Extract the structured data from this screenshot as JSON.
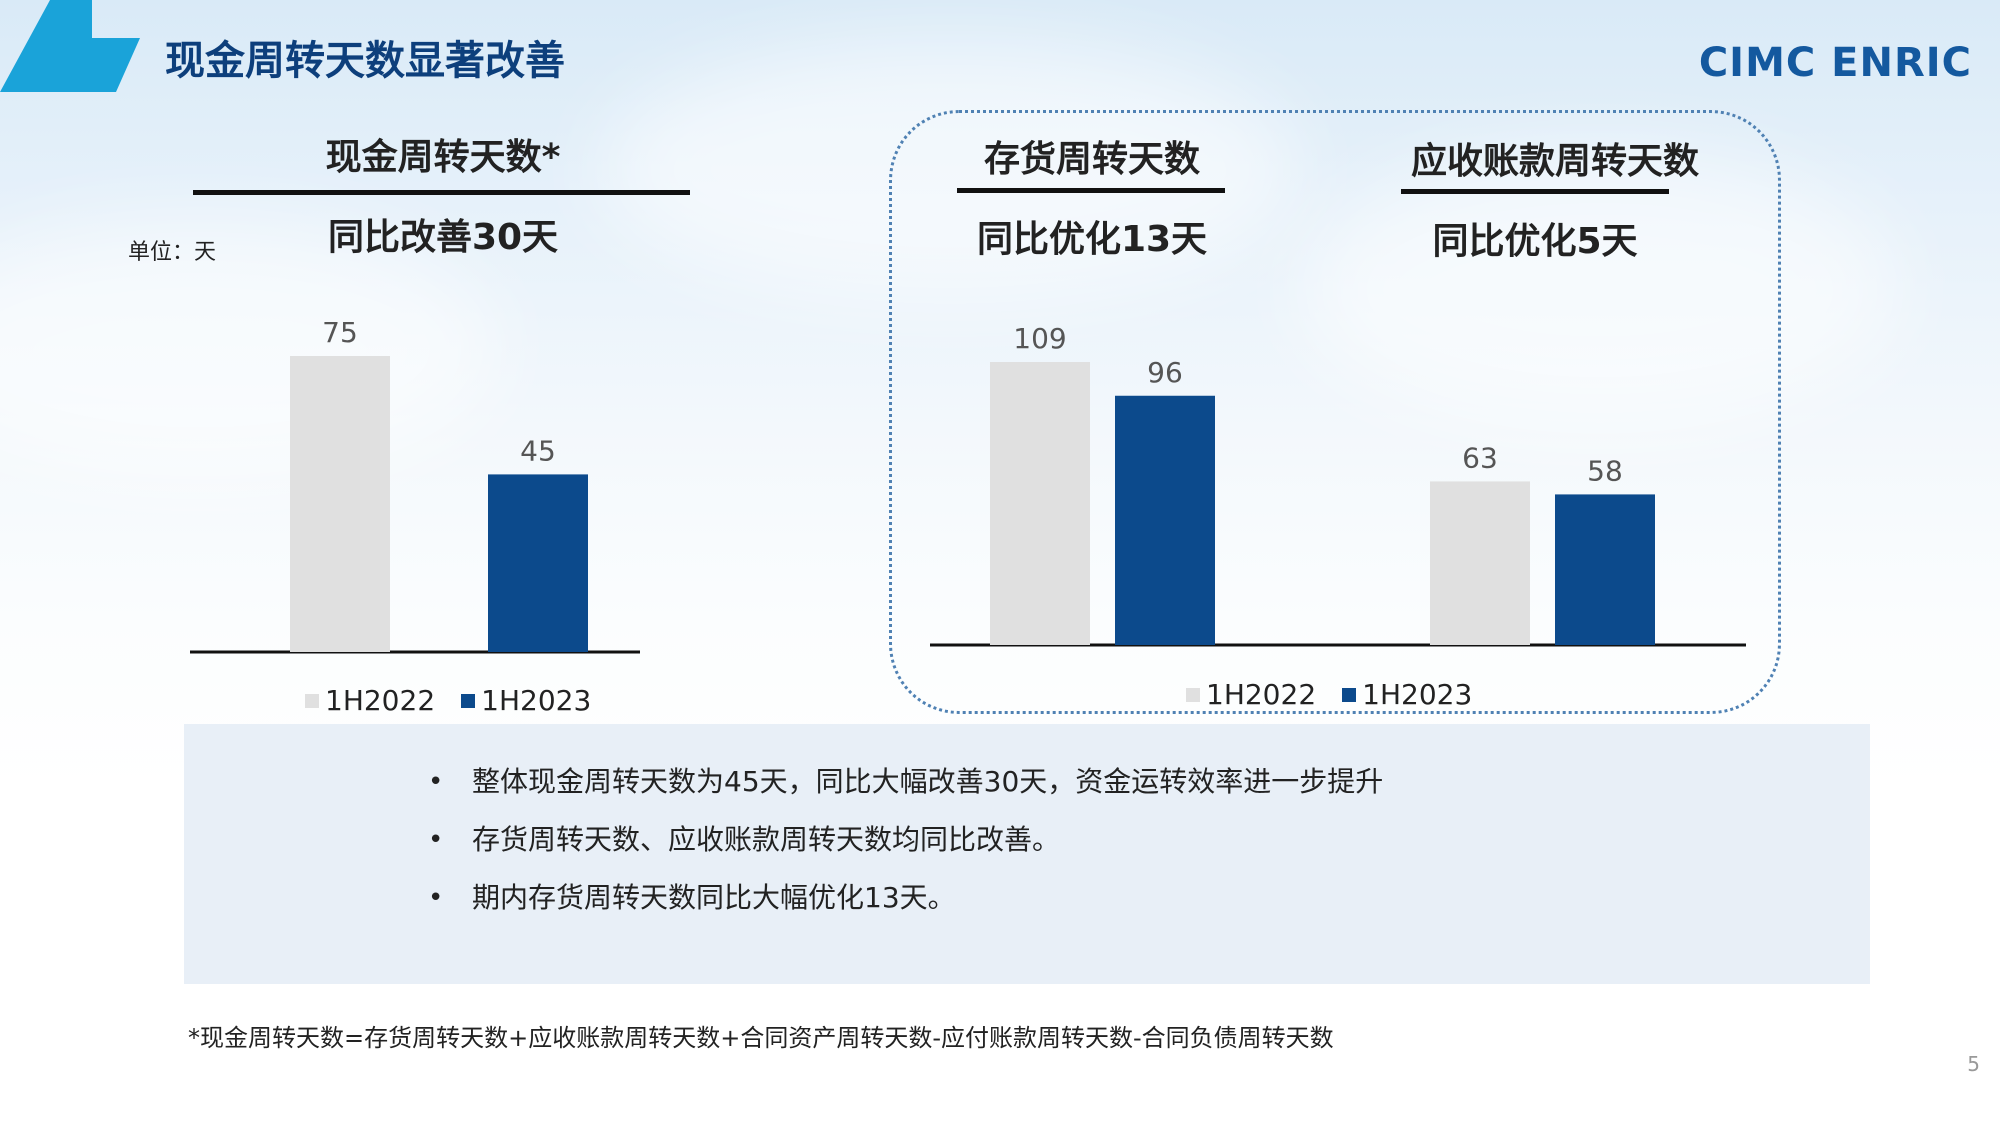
{
  "page_title": "现金周转天数显著改善",
  "brand": "CIMC ENRIC",
  "unit_label": "单位：天",
  "page_number": "5",
  "colors": {
    "prior": "#e0e0e0",
    "current": "#0c4a8c",
    "title": "#0d3f7c",
    "accent": "#1aa3d9"
  },
  "legend": {
    "prior": "1H2022",
    "current": "1H2023"
  },
  "panels": [
    {
      "title": "现金周转天数*",
      "subtitle": "同比改善30天"
    },
    {
      "title": "存货周转天数",
      "subtitle": "同比优化13天"
    },
    {
      "title": "应收账款周转天数",
      "subtitle": "同比优化5天"
    }
  ],
  "chart_data": [
    {
      "type": "bar",
      "title": "现金周转天数*",
      "categories": [
        "现金周转天数"
      ],
      "series": [
        {
          "name": "1H2022",
          "values": [
            75
          ]
        },
        {
          "name": "1H2023",
          "values": [
            45
          ]
        }
      ],
      "ylim": [
        0,
        75
      ],
      "legend": "bottom"
    },
    {
      "type": "bar",
      "categories": [
        "存货周转天数",
        "应收账款周转天数"
      ],
      "series": [
        {
          "name": "1H2022",
          "values": [
            109,
            63
          ]
        },
        {
          "name": "1H2023",
          "values": [
            96,
            58
          ]
        }
      ],
      "ylim": [
        0,
        109
      ],
      "legend": "bottom"
    }
  ],
  "bullets": [
    "整体现金周转天数为45天，同比大幅改善30天，资金运转效率进一步提升",
    "存货周转天数、应收账款周转天数均同比改善。",
    "期内存货周转天数同比大幅优化13天。"
  ],
  "bullet_marker": "•",
  "footnote": "*现金周转天数=存货周转天数+应收账款周转天数+合同资产周转天数-应付账款周转天数-合同负债周转天数"
}
